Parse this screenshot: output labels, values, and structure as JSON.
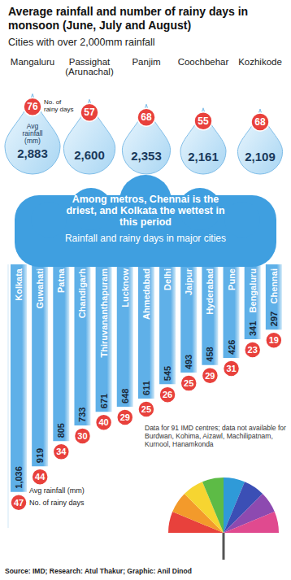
{
  "chart_data": [
    {
      "type": "pictogram",
      "title": "Average rainfall and number of rainy days in monsoon (June, July and August)",
      "subtitle": "Cities with over 2,000mm rainfall",
      "categories": [
        "Mangaluru",
        "Passighat (Arunachal)",
        "Panjim",
        "Coochbehar",
        "Kozhikode"
      ],
      "series": [
        {
          "name": "Avg rainfall (mm)",
          "color": "#a9d6f3",
          "values": [
            2883,
            2600,
            2353,
            2161,
            2109
          ],
          "value_labels": [
            "2,883",
            "2,600",
            "2,353",
            "2,161",
            "2,109"
          ]
        },
        {
          "name": "No. of rainy days",
          "color": "#e8413c",
          "values": [
            76,
            57,
            68,
            55,
            68
          ]
        }
      ],
      "data_labels": true
    },
    {
      "type": "bar",
      "title": "Among metros, Chennai is the driest, and Kolkata the wettest in this period",
      "subtitle": "Rainfall and rainy days in major cities",
      "categories": [
        "Kolkata",
        "Guwahati",
        "Patna",
        "Chandigarh",
        "Thiruvananthapuram",
        "Lucknow",
        "Ahmedabad",
        "Delhi",
        "Jaipur",
        "Hyderabad",
        "Pune",
        "Bengaluru",
        "Chennai"
      ],
      "series": [
        {
          "name": "Avg rainfall (mm)",
          "color": "#5fb0e8",
          "values": [
            1036,
            919,
            805,
            733,
            671,
            648,
            611,
            545,
            493,
            458,
            426,
            341,
            297
          ],
          "value_labels": [
            "1,036",
            "919",
            "805",
            "733",
            "671",
            "648",
            "611",
            "545",
            "493",
            "458",
            "426",
            "341",
            "297"
          ]
        },
        {
          "name": "No. of rainy days",
          "color": "#e8413c",
          "values": [
            47,
            44,
            34,
            30,
            40,
            29,
            25,
            26,
            25,
            29,
            31,
            23,
            19
          ]
        }
      ],
      "ylim": [
        0,
        1200
      ],
      "yticks": [
        0,
        1200
      ],
      "tick_labels": false,
      "data_labels": true,
      "annotations": [
        "Data for 91 IMD centres; data not available for Burdwan, Kohima, Aizawl, Machilipatnam, Kurnool, Hanamkonda",
        "Source: IMD; Research: Atul Thakur; Graphic: Anil Dinod"
      ]
    }
  ]
}
